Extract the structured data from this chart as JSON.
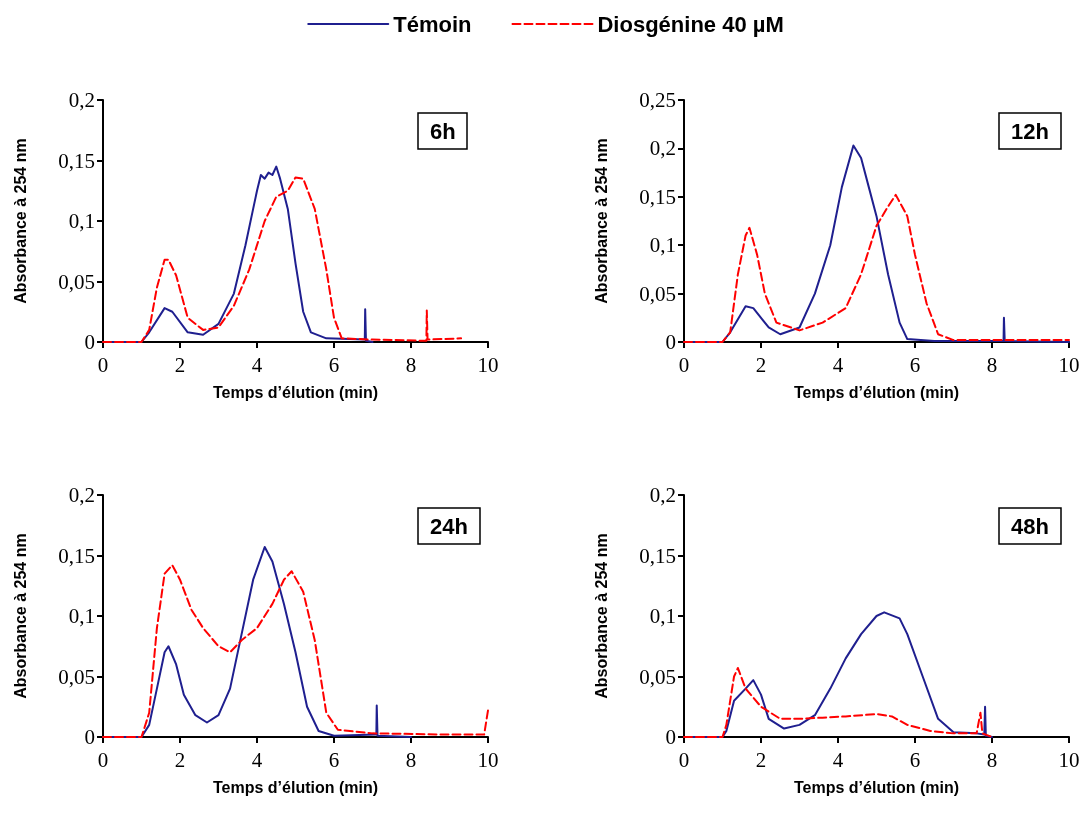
{
  "chart_data": [
    {
      "type": "line",
      "title": "6h",
      "xlabel": "Temps d’élution (min)",
      "ylabel": "Absorbance à 254 nm",
      "xlim": [
        0,
        10
      ],
      "xticks": [
        0,
        2,
        4,
        6,
        8,
        10
      ],
      "ylim": [
        0,
        0.2
      ],
      "yticks": [
        {
          "value": 0,
          "label": "0"
        },
        {
          "value": 0.05,
          "label": "0,05"
        },
        {
          "value": 0.1,
          "label": "0,1"
        },
        {
          "value": 0.15,
          "label": "0,15"
        },
        {
          "value": 0.2,
          "label": "0,2"
        }
      ],
      "legend": "top",
      "grid": false,
      "marker": "none",
      "series": [
        {
          "name": "Témoin",
          "color": "#1f1f8f",
          "line_style": "solid",
          "x": [
            0,
            1,
            1.2,
            1.6,
            1.8,
            2.2,
            2.6,
            3,
            3.4,
            3.7,
            3.9,
            4.0,
            4.1,
            4.2,
            4.3,
            4.4,
            4.5,
            4.6,
            4.8,
            5.0,
            5.2,
            5.4,
            5.8,
            6.8,
            6.81,
            6.83,
            7
          ],
          "values": [
            0,
            0,
            0.008,
            0.028,
            0.025,
            0.008,
            0.006,
            0.015,
            0.04,
            0.08,
            0.11,
            0.125,
            0.138,
            0.135,
            0.14,
            0.138,
            0.145,
            0.135,
            0.11,
            0.065,
            0.025,
            0.008,
            0.003,
            0.002,
            0.027,
            0.001,
            0
          ]
        },
        {
          "name": "Diosgénine 40 µM",
          "color": "#ff0000",
          "line_style": "dashed",
          "x": [
            0,
            1,
            1.2,
            1.4,
            1.6,
            1.7,
            1.9,
            2.2,
            2.6,
            3,
            3.4,
            3.8,
            4.2,
            4.5,
            4.8,
            5,
            5.2,
            5.5,
            5.8,
            6.0,
            6.2,
            7,
            8.4,
            8.41,
            8.43,
            9.3
          ],
          "values": [
            0,
            0,
            0.01,
            0.045,
            0.068,
            0.068,
            0.055,
            0.02,
            0.01,
            0.012,
            0.03,
            0.06,
            0.1,
            0.12,
            0.125,
            0.136,
            0.135,
            0.11,
            0.06,
            0.02,
            0.003,
            0.002,
            0.001,
            0.026,
            0.002,
            0.003
          ]
        }
      ]
    },
    {
      "type": "line",
      "title": "12h",
      "xlabel": "Temps d’élution (min)",
      "ylabel": "Absorbance à 254 nm",
      "xlim": [
        0,
        10
      ],
      "xticks": [
        0,
        2,
        4,
        6,
        8,
        10
      ],
      "ylim": [
        0,
        0.25
      ],
      "yticks": [
        {
          "value": 0,
          "label": "0"
        },
        {
          "value": 0.05,
          "label": "0,05"
        },
        {
          "value": 0.1,
          "label": "0,1"
        },
        {
          "value": 0.15,
          "label": "0,15"
        },
        {
          "value": 0.2,
          "label": "0,2"
        },
        {
          "value": 0.25,
          "label": "0,25"
        }
      ],
      "grid": false,
      "marker": "none",
      "series": [
        {
          "color": "#1f1f8f",
          "line_style": "solid",
          "x": [
            0,
            1,
            1.2,
            1.6,
            1.8,
            2.2,
            2.5,
            3,
            3.4,
            3.8,
            4.1,
            4.4,
            4.6,
            4.8,
            5.0,
            5.3,
            5.6,
            5.8,
            6.5,
            8.3,
            8.31,
            8.33,
            10
          ],
          "values": [
            0,
            0,
            0.01,
            0.037,
            0.035,
            0.015,
            0.008,
            0.015,
            0.05,
            0.1,
            0.16,
            0.203,
            0.19,
            0.16,
            0.13,
            0.07,
            0.02,
            0.003,
            0.001,
            0.001,
            0.025,
            0.001,
            0
          ]
        },
        {
          "color": "#ff0000",
          "line_style": "dashed",
          "x": [
            0,
            1,
            1.2,
            1.4,
            1.6,
            1.7,
            1.9,
            2.1,
            2.4,
            3,
            3.6,
            4.2,
            4.6,
            5.0,
            5.3,
            5.5,
            5.8,
            6.0,
            6.3,
            6.6,
            7,
            10
          ],
          "values": [
            0,
            0,
            0.01,
            0.07,
            0.11,
            0.118,
            0.09,
            0.05,
            0.02,
            0.012,
            0.02,
            0.035,
            0.07,
            0.12,
            0.14,
            0.152,
            0.13,
            0.09,
            0.04,
            0.008,
            0.002,
            0.002
          ]
        }
      ]
    },
    {
      "type": "line",
      "title": "24h",
      "xlabel": "Temps d’élution (min)",
      "ylabel": "Absorbance à 254 nm",
      "xlim": [
        0,
        10
      ],
      "xticks": [
        0,
        2,
        4,
        6,
        8,
        10
      ],
      "ylim": [
        0,
        0.2
      ],
      "yticks": [
        {
          "value": 0,
          "label": "0"
        },
        {
          "value": 0.05,
          "label": "0,05"
        },
        {
          "value": 0.1,
          "label": "0,1"
        },
        {
          "value": 0.15,
          "label": "0,15"
        },
        {
          "value": 0.2,
          "label": "0,2"
        }
      ],
      "grid": false,
      "marker": "none",
      "series": [
        {
          "color": "#1f1f8f",
          "line_style": "solid",
          "x": [
            0,
            1,
            1.2,
            1.4,
            1.6,
            1.7,
            1.9,
            2.1,
            2.4,
            2.7,
            3.0,
            3.3,
            3.6,
            3.9,
            4.2,
            4.4,
            4.7,
            5.0,
            5.3,
            5.6,
            6,
            7.1,
            7.11,
            7.13,
            8
          ],
          "values": [
            0,
            0,
            0.01,
            0.04,
            0.07,
            0.075,
            0.06,
            0.035,
            0.018,
            0.012,
            0.018,
            0.04,
            0.085,
            0.13,
            0.157,
            0.145,
            0.11,
            0.07,
            0.025,
            0.005,
            0.001,
            0.002,
            0.026,
            0.001,
            0
          ]
        },
        {
          "color": "#ff0000",
          "line_style": "dashed",
          "x": [
            0,
            1,
            1.2,
            1.4,
            1.6,
            1.8,
            2.0,
            2.3,
            2.6,
            3.0,
            3.3,
            3.6,
            4.0,
            4.4,
            4.7,
            4.9,
            5.2,
            5.5,
            5.8,
            6.1,
            7,
            9,
            9.9,
            10
          ],
          "values": [
            0,
            0,
            0.02,
            0.09,
            0.135,
            0.142,
            0.13,
            0.105,
            0.09,
            0.075,
            0.07,
            0.08,
            0.09,
            0.11,
            0.13,
            0.137,
            0.12,
            0.08,
            0.02,
            0.006,
            0.003,
            0.002,
            0.002,
            0.022
          ]
        }
      ]
    },
    {
      "type": "line",
      "title": "48h",
      "xlabel": "Temps d’élution (min)",
      "ylabel": "Absorbance à 254 nm",
      "xlim": [
        0,
        10
      ],
      "xticks": [
        0,
        2,
        4,
        6,
        8,
        10
      ],
      "ylim": [
        0,
        0.2
      ],
      "yticks": [
        {
          "value": 0,
          "label": "0"
        },
        {
          "value": 0.05,
          "label": "0,05"
        },
        {
          "value": 0.1,
          "label": "0,1"
        },
        {
          "value": 0.15,
          "label": "0,15"
        },
        {
          "value": 0.2,
          "label": "0,2"
        }
      ],
      "grid": false,
      "marker": "none",
      "series": [
        {
          "color": "#1f1f8f",
          "line_style": "solid",
          "x": [
            0,
            1,
            1.1,
            1.3,
            1.6,
            1.8,
            2.0,
            2.2,
            2.6,
            3,
            3.4,
            3.8,
            4.2,
            4.6,
            5.0,
            5.2,
            5.6,
            5.8,
            6.2,
            6.6,
            7,
            7.6,
            7.8,
            7.82,
            7.84,
            8
          ],
          "values": [
            0,
            0,
            0.005,
            0.03,
            0.04,
            0.047,
            0.035,
            0.015,
            0.007,
            0.01,
            0.018,
            0.04,
            0.065,
            0.085,
            0.1,
            0.103,
            0.098,
            0.085,
            0.05,
            0.015,
            0.004,
            0.003,
            0.002,
            0.025,
            0.001,
            0
          ]
        },
        {
          "color": "#ff0000",
          "line_style": "dashed",
          "x": [
            0,
            1,
            1.1,
            1.3,
            1.4,
            1.6,
            2.0,
            2.5,
            3,
            3.6,
            4.2,
            5.0,
            5.4,
            5.8,
            6.4,
            7,
            7.6,
            7.7,
            7.75,
            8
          ],
          "values": [
            0,
            0,
            0.01,
            0.05,
            0.057,
            0.04,
            0.025,
            0.015,
            0.015,
            0.016,
            0.017,
            0.019,
            0.017,
            0.01,
            0.005,
            0.003,
            0.003,
            0.02,
            0.003,
            0
          ]
        }
      ]
    }
  ]
}
